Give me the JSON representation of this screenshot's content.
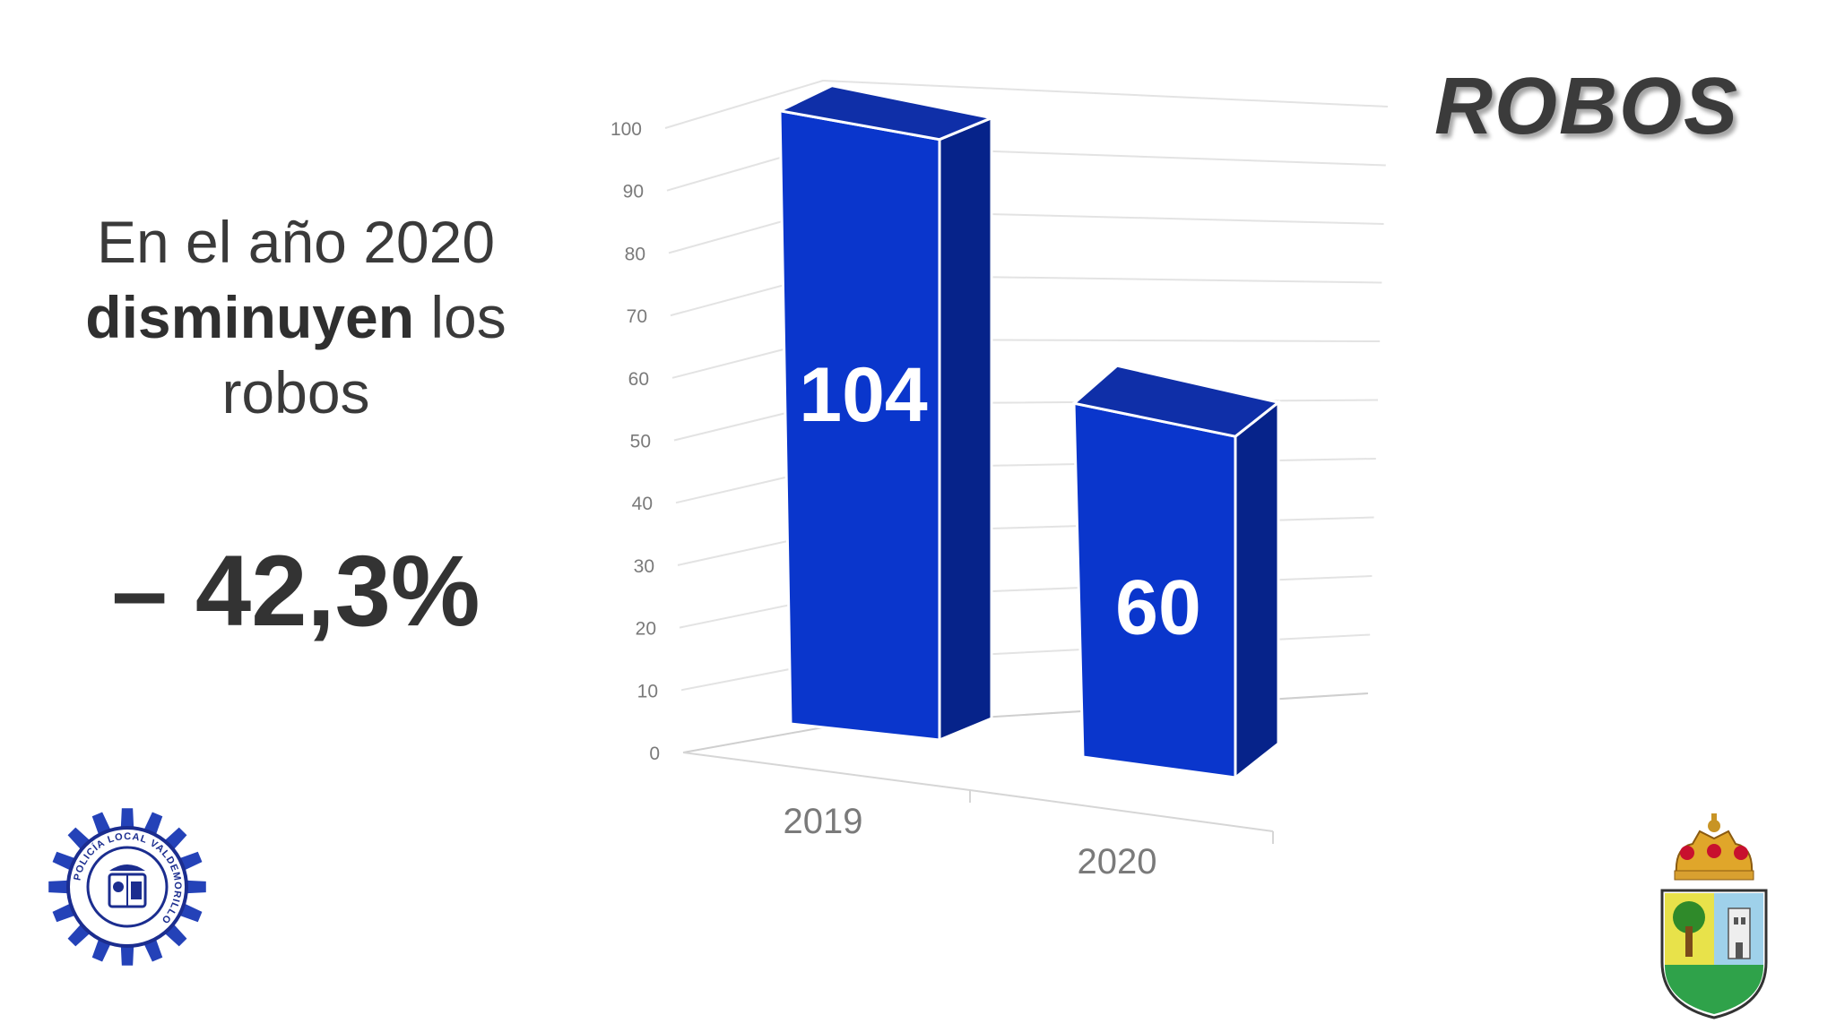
{
  "slide": {
    "title": "ROBOS",
    "headline_line1": "En el año 2020",
    "headline_bold": "disminuyen",
    "headline_rest": " los",
    "headline_line3": "robos",
    "change": "– 42,3%"
  },
  "colors": {
    "bar_front": "#0a36cc",
    "bar_side": "#06238a",
    "bar_top": "#0f2fa8",
    "text_dark": "#333333",
    "axis_text": "#7a7a7a",
    "grid": "#e3e3e3"
  },
  "logos": {
    "left": "policia-local-valdemorillo-badge",
    "left_text": "POLICÍA LOCAL VALDEMORILLO",
    "right": "valdemorillo-coat-of-arms"
  },
  "chart_data": {
    "type": "bar",
    "categories": [
      "2019",
      "2020"
    ],
    "values": [
      104,
      60
    ],
    "data_labels": [
      "104",
      "60"
    ],
    "yticks": [
      "0",
      "10",
      "20",
      "30",
      "40",
      "50",
      "60",
      "70",
      "80",
      "90",
      "100"
    ],
    "ylim": [
      0,
      100
    ],
    "grid": true,
    "style": "3d-perspective"
  }
}
